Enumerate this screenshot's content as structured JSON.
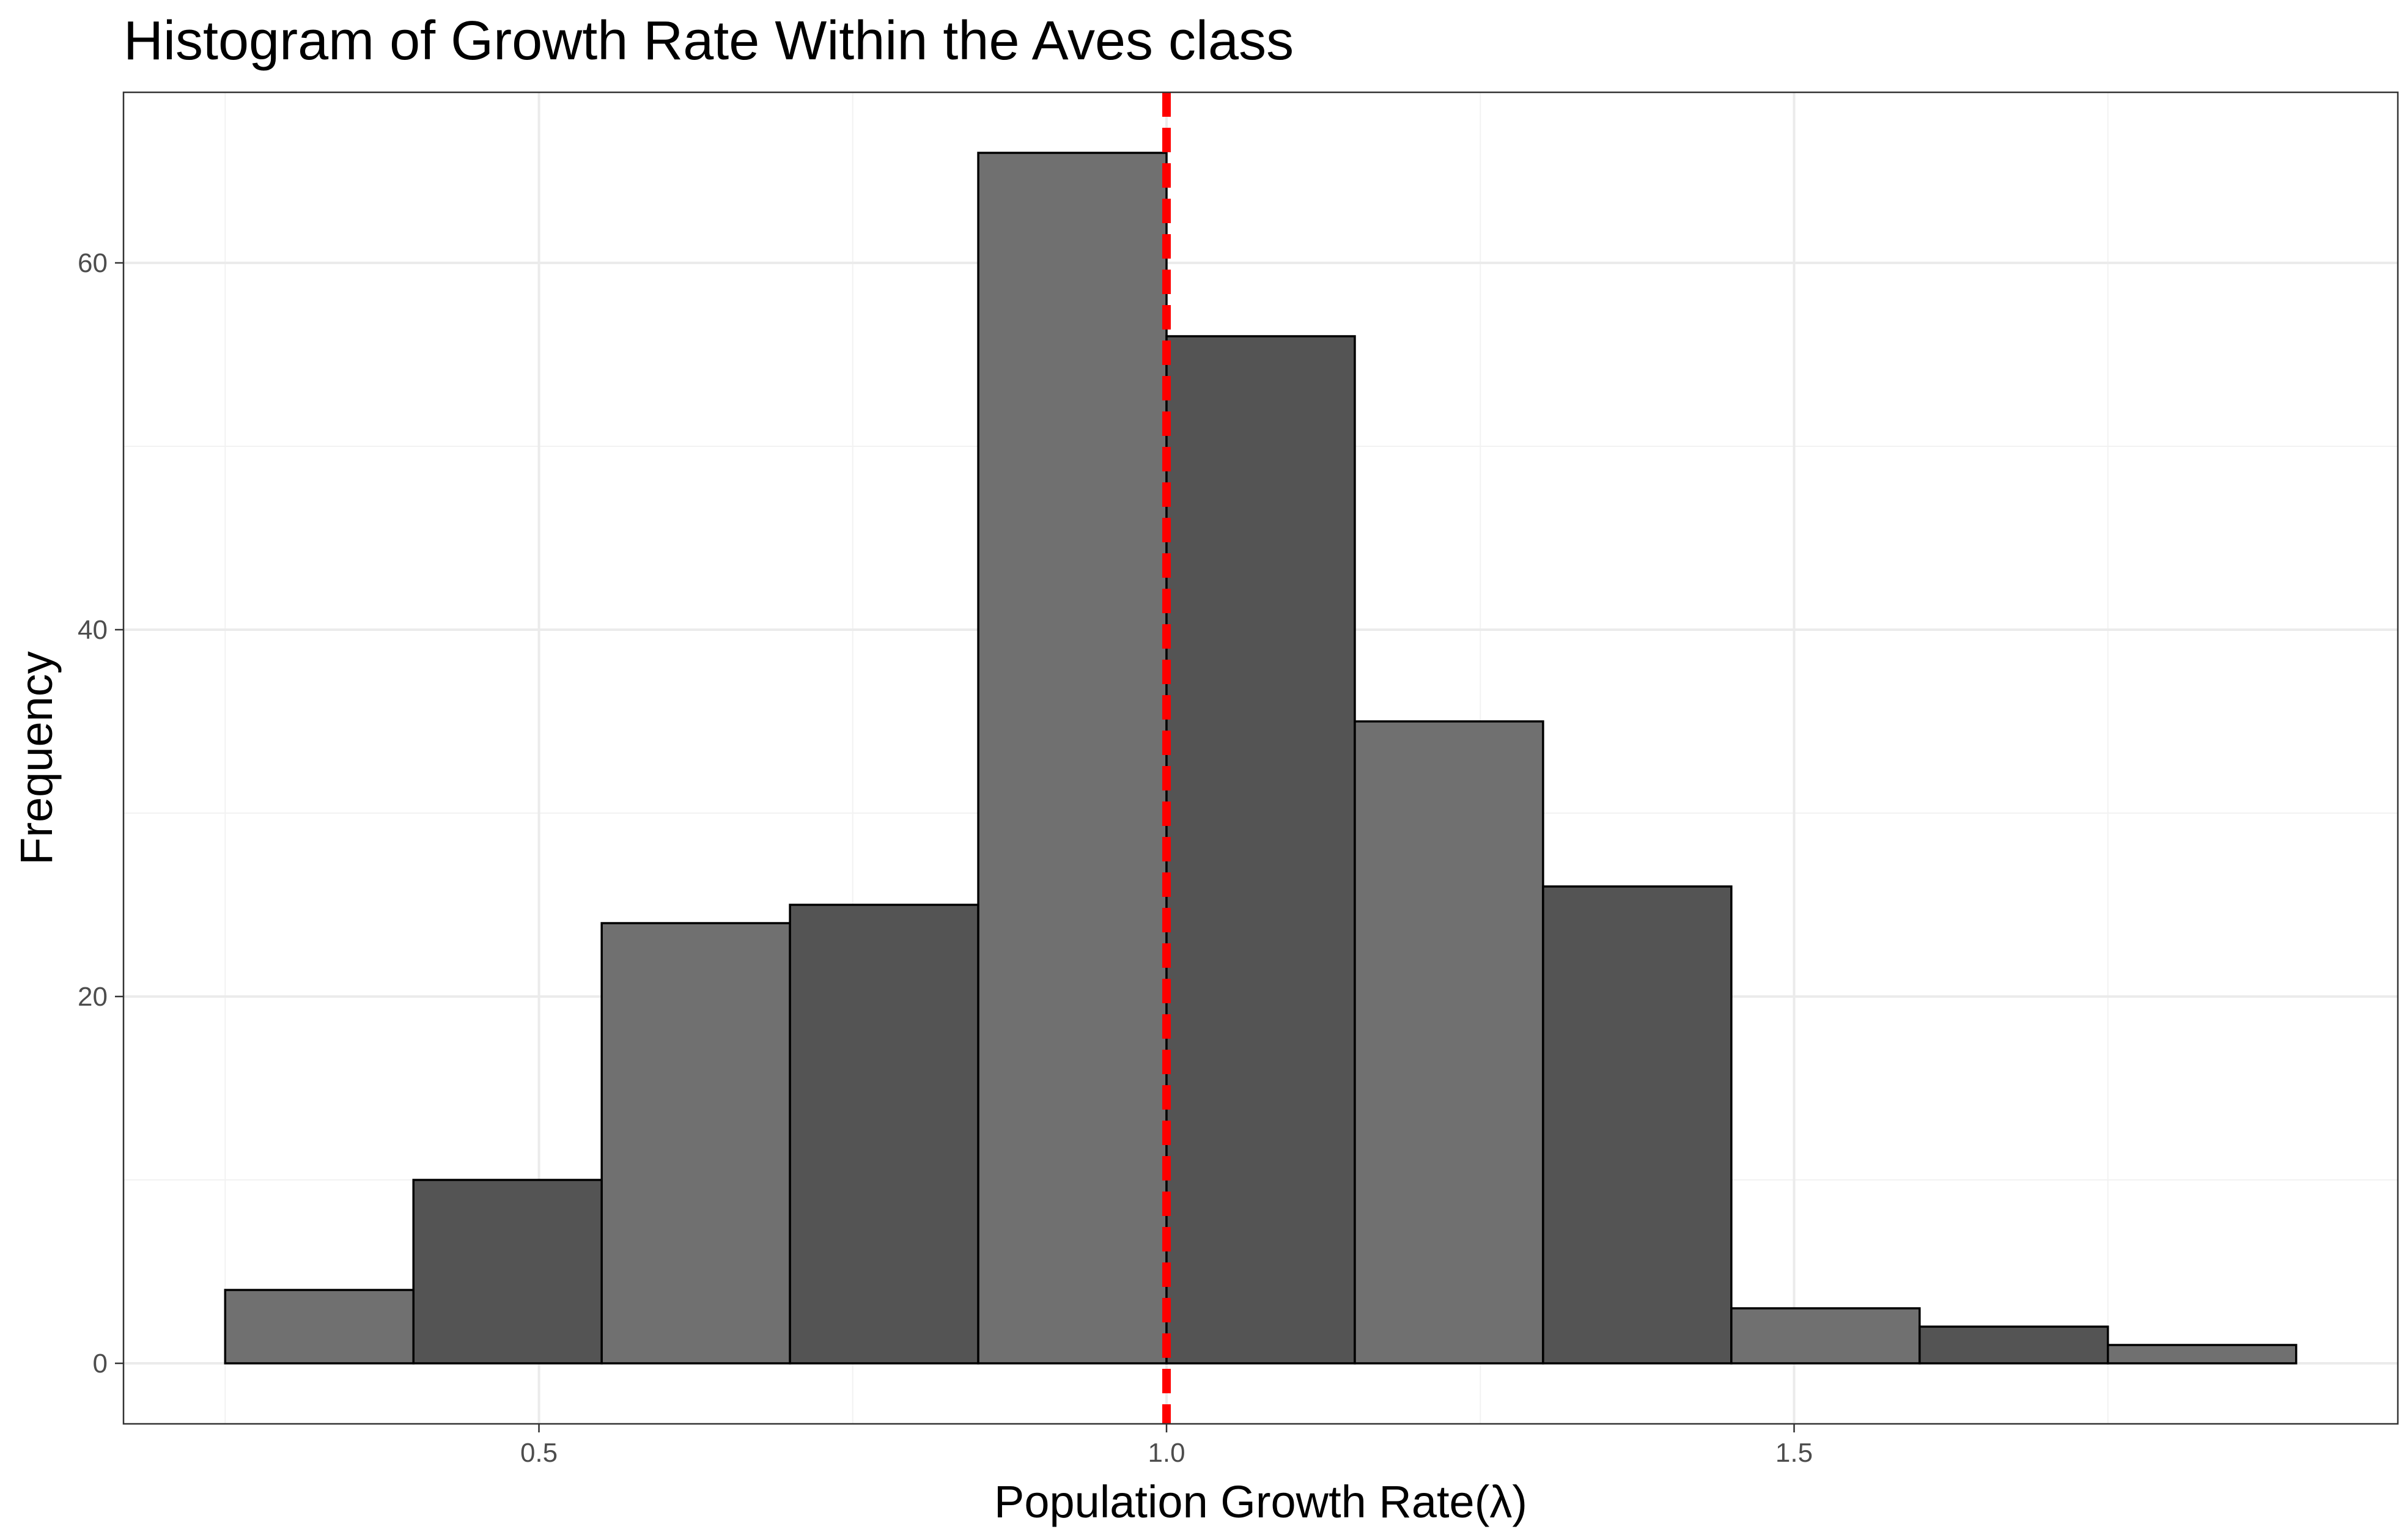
{
  "chart_data": {
    "type": "bar",
    "title": "Histogram of Growth Rate Within the Aves class",
    "xlabel": "Population Growth Rate(λ)",
    "ylabel": "Frequency",
    "bins": [
      {
        "x0": 0.25,
        "x1": 0.4,
        "count": 4
      },
      {
        "x0": 0.4,
        "x1": 0.55,
        "count": 10
      },
      {
        "x0": 0.55,
        "x1": 0.7,
        "count": 24
      },
      {
        "x0": 0.7,
        "x1": 0.85,
        "count": 25
      },
      {
        "x0": 0.85,
        "x1": 1.0,
        "count": 66
      },
      {
        "x0": 1.0,
        "x1": 1.15,
        "count": 56
      },
      {
        "x0": 1.15,
        "x1": 1.3,
        "count": 35
      },
      {
        "x0": 1.3,
        "x1": 1.45,
        "count": 26
      },
      {
        "x0": 1.45,
        "x1": 1.6,
        "count": 3
      },
      {
        "x0": 1.6,
        "x1": 1.75,
        "count": 2
      },
      {
        "x0": 1.75,
        "x1": 1.9,
        "count": 1
      }
    ],
    "bar_colors": [
      "#707070",
      "#545454"
    ],
    "bar_outline": "#000000",
    "xlim": [
      0.169,
      1.981
    ],
    "ylim": [
      -3.3,
      69.3
    ],
    "xticks": [
      0.5,
      1.0,
      1.5
    ],
    "xtick_labels": [
      "0.5",
      "1.0",
      "1.5"
    ],
    "yticks": [
      0,
      20,
      40,
      60
    ],
    "ytick_labels": [
      "0",
      "20",
      "40",
      "60"
    ],
    "reference_line": {
      "x": 1.0,
      "color": "#ff0000",
      "style": "dashed"
    },
    "grid": true,
    "legend": "none"
  }
}
